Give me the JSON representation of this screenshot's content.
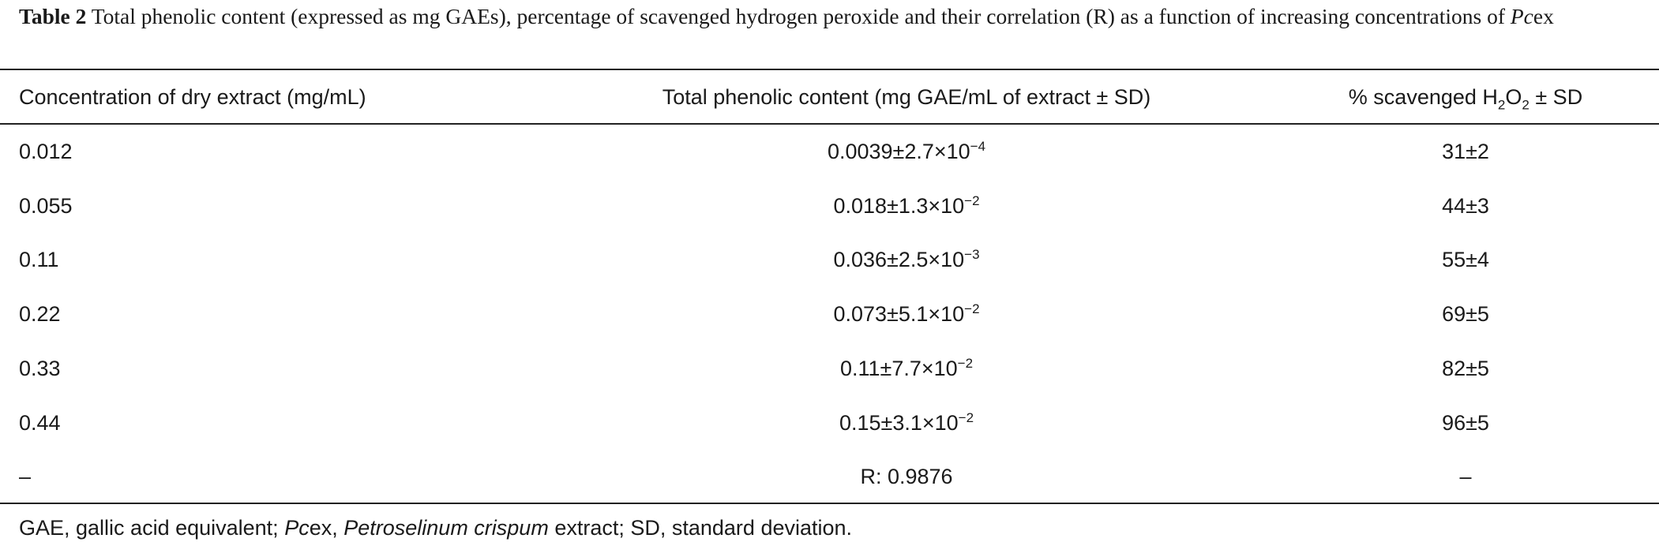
{
  "caption": {
    "label": "Table 2",
    "text": [
      {
        "text": " Total phenolic content (expressed as mg GAEs), percentage of scavenged hydrogen peroxide and their correlation (R) as a function of increasing concentrations of "
      },
      {
        "i": "Pc"
      },
      {
        "text": "ex"
      }
    ]
  },
  "table": {
    "header": [
      "Concentration of dry extract (mg/mL)",
      "Total phenolic content (mg GAE/mL of extract ± SD)",
      [
        {
          "text": "% scavenged H"
        },
        {
          "sub": "2"
        },
        {
          "text": "O"
        },
        {
          "sub": "2"
        },
        {
          "text": " ± SD"
        }
      ]
    ],
    "rows": [
      [
        "0.012",
        [
          {
            "text": "0.0039±2.7×10"
          },
          {
            "sup": "−4"
          }
        ],
        "31±2"
      ],
      [
        "0.055",
        [
          {
            "text": "0.018±1.3×10"
          },
          {
            "sup": "−2"
          }
        ],
        "44±3"
      ],
      [
        "0.11",
        [
          {
            "text": "0.036±2.5×10"
          },
          {
            "sup": "−3"
          }
        ],
        "55±4"
      ],
      [
        "0.22",
        [
          {
            "text": "0.073±5.1×10"
          },
          {
            "sup": "−2"
          }
        ],
        "69±5"
      ],
      [
        "0.33",
        [
          {
            "text": "0.11±7.7×10"
          },
          {
            "sup": "−2"
          }
        ],
        "82±5"
      ],
      [
        "0.44",
        [
          {
            "text": "0.15±3.1×10"
          },
          {
            "sup": "−2"
          }
        ],
        "96±5"
      ],
      [
        "–",
        "R: 0.9876",
        "–"
      ]
    ]
  },
  "footnote": [
    {
      "text": "GAE, gallic acid equivalent; "
    },
    {
      "i": "Pc"
    },
    {
      "text": "ex, "
    },
    {
      "i": "Petroselinum crispum"
    },
    {
      "text": " extract; SD, standard deviation."
    }
  ]
}
